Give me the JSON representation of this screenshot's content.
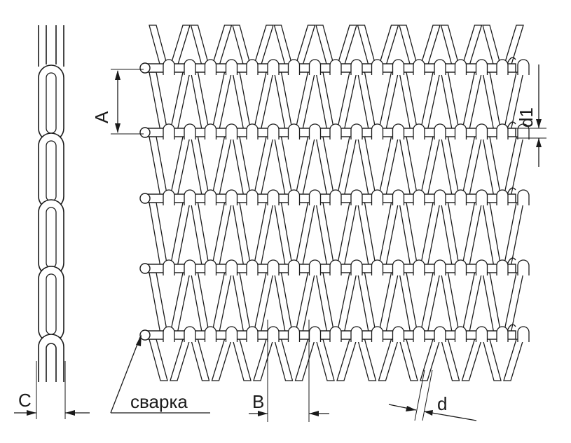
{
  "diagram": {
    "labels": {
      "a": "A",
      "b": "B",
      "c": "C",
      "d": "d",
      "d1": "d1",
      "weld": "сварка"
    },
    "colors": {
      "wire_outline": "#1a1a1a",
      "wire_fill": "#ffffff",
      "background": "#ffffff"
    }
  }
}
